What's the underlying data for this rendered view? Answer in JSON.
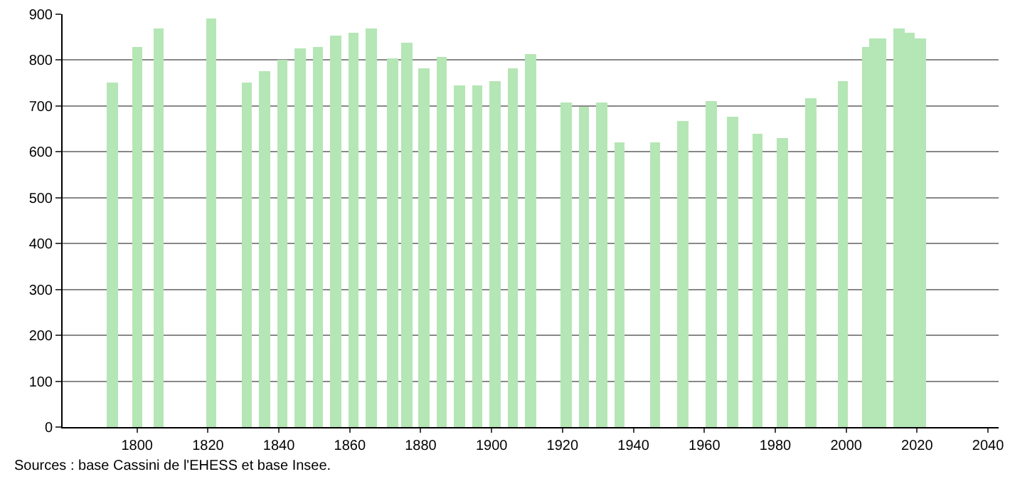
{
  "chart_data": {
    "type": "bar",
    "x": [
      1793,
      1800,
      1806,
      1821,
      1831,
      1836,
      1841,
      1846,
      1851,
      1856,
      1861,
      1866,
      1872,
      1876,
      1881,
      1886,
      1891,
      1896,
      1901,
      1906,
      1911,
      1921,
      1926,
      1931,
      1936,
      1946,
      1954,
      1962,
      1968,
      1975,
      1982,
      1990,
      1999,
      2006,
      2008,
      2010,
      2015,
      2018,
      2021
    ],
    "values": [
      750,
      830,
      870,
      890,
      752,
      777,
      800,
      826,
      830,
      855,
      860,
      870,
      803,
      838,
      782,
      806,
      745,
      745,
      755,
      781,
      813,
      707,
      698,
      707,
      620,
      620,
      668,
      710,
      678,
      638,
      630,
      718,
      755,
      829,
      847,
      847,
      870,
      860,
      847
    ],
    "color": "#b5e6b5",
    "xlim": [
      1779,
      2043
    ],
    "xticks": [
      1800,
      1820,
      1840,
      1860,
      1880,
      1900,
      1920,
      1940,
      1960,
      1980,
      2000,
      2020,
      2040
    ],
    "ylim": [
      0,
      900
    ],
    "yticks": [
      0,
      100,
      200,
      300,
      400,
      500,
      600,
      700,
      800,
      900
    ],
    "grid": "y",
    "annotations": [
      "Sources : base Cassini de l'EHESS et base Insee."
    ]
  }
}
